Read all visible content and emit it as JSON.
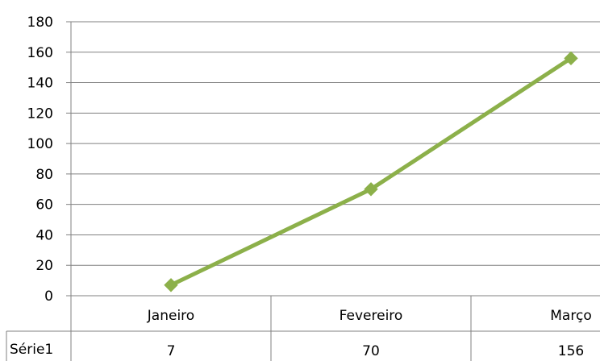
{
  "chart_data": {
    "type": "line",
    "title": "",
    "xlabel": "",
    "ylabel": "",
    "categories": [
      "Janeiro",
      "Fevereiro",
      "Março"
    ],
    "series": [
      {
        "name": "Série1",
        "values": [
          7,
          70,
          156
        ],
        "color": "#8cb04a"
      }
    ],
    "ylim": [
      0,
      180
    ],
    "yticks": [
      0,
      20,
      40,
      60,
      80,
      100,
      120,
      140,
      160,
      180
    ],
    "grid": true,
    "gridColor": "#808080",
    "legend": "data-table",
    "marker": "diamond"
  }
}
